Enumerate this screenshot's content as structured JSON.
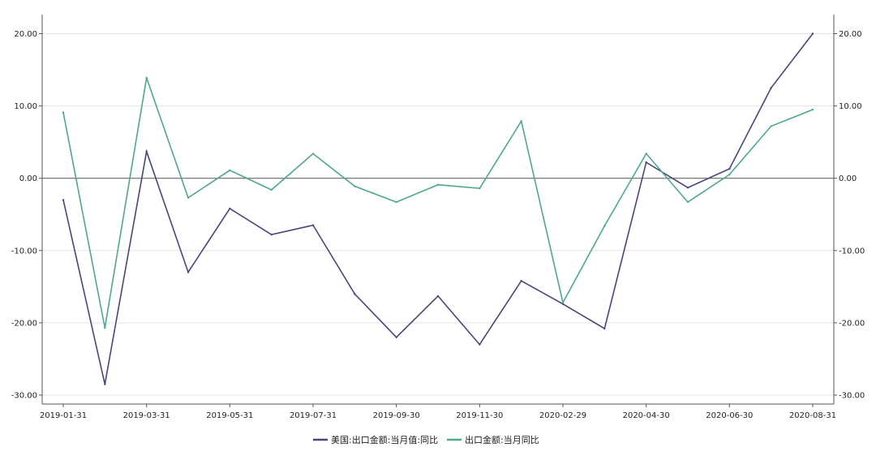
{
  "chart_data": {
    "type": "line",
    "title": "",
    "xlabel": "",
    "ylabel": "",
    "ylim": [
      -30,
      20
    ],
    "yticks": [
      20,
      10,
      0,
      -10,
      -20,
      -30
    ],
    "ytick_labels": [
      "20.00",
      "10.00",
      "0.00",
      "-10.00",
      "-20.00",
      "-30.00"
    ],
    "right_axis": {
      "ylim": [
        -30,
        20
      ],
      "mirrors_left": true
    },
    "grid": true,
    "legend_position": "bottom",
    "x": [
      "2019-01-31",
      "2019-02-28",
      "2019-03-31",
      "2019-04-30",
      "2019-05-31",
      "2019-06-30",
      "2019-07-31",
      "2019-08-31",
      "2019-09-30",
      "2019-10-31",
      "2019-11-30",
      "2019-12-31",
      "2020-02-29",
      "2020-03-31",
      "2020-04-30",
      "2020-05-31",
      "2020-06-30",
      "2020-07-31",
      "2020-08-31"
    ],
    "xtick_labels": [
      "2019-01-31",
      "2019-03-31",
      "2019-05-31",
      "2019-07-31",
      "2019-09-30",
      "2019-11-30",
      "2020-02-29",
      "2020-04-30",
      "2020-06-30",
      "2020-08-31"
    ],
    "series": [
      {
        "name": "美国:出口金额:当月值:同比",
        "color": "#45467e",
        "values": [
          -3.0,
          -28.5,
          3.7,
          -13.0,
          -4.2,
          -7.8,
          -6.5,
          -16.0,
          -22.0,
          -16.3,
          -23.0,
          -14.2,
          -17.4,
          -20.8,
          2.2,
          -1.3,
          1.3,
          12.5,
          20.0
        ]
      },
      {
        "name": "出口金额:当月同比",
        "color": "#4ea88a",
        "values": [
          9.1,
          -20.7,
          13.9,
          -2.7,
          1.1,
          -1.6,
          3.4,
          -1.1,
          -3.3,
          -0.9,
          -1.4,
          7.9,
          -17.2,
          -6.6,
          3.4,
          -3.3,
          0.5,
          7.2,
          9.5
        ]
      }
    ]
  }
}
